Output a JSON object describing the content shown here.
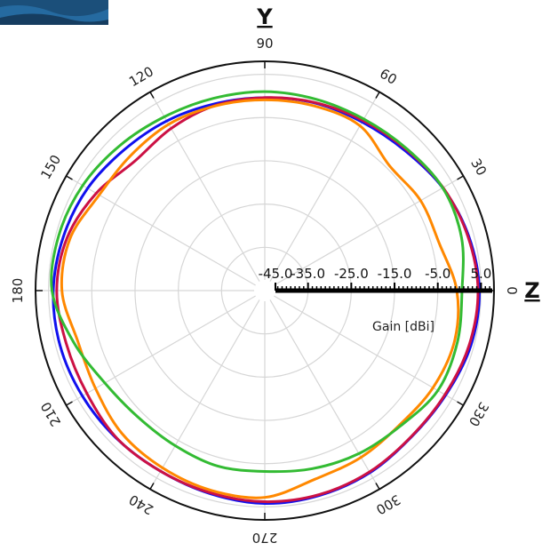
{
  "chart_data": {
    "type": "polar-line",
    "rlabel": "Gain [dBi]",
    "rlim": [
      -45,
      8
    ],
    "rticks": [
      -45.0,
      -35.0,
      -25.0,
      -15.0,
      -5.0,
      5.0
    ],
    "rtick_labels": [
      "-45.0",
      "-35.0",
      "-25.0",
      "-15.0",
      "-5.0",
      "5.0"
    ],
    "angle_ticks": [
      0,
      30,
      60,
      90,
      120,
      150,
      180,
      210,
      240,
      270,
      300,
      330
    ],
    "angle_labels": [
      "0",
      "30",
      "60",
      "90",
      "120",
      "150",
      "180",
      "210",
      "240",
      "270",
      "300",
      "330"
    ],
    "axis_letters": {
      "top": "Y",
      "right": "Z"
    },
    "grid": true,
    "series": [
      {
        "color": "#1010ee",
        "angles": [
          0,
          15,
          30,
          45,
          60,
          75,
          90,
          105,
          120,
          135,
          150,
          165,
          180,
          195,
          210,
          225,
          240,
          255,
          270,
          285,
          300,
          315,
          330,
          345
        ],
        "values": [
          4.6,
          3.8,
          2.5,
          0.8,
          0.0,
          -0.1,
          -0.4,
          -0.3,
          0.3,
          1.0,
          2.3,
          3.2,
          3.9,
          4.0,
          3.7,
          3.4,
          3.2,
          3.6,
          4.2,
          4.0,
          3.6,
          2.9,
          3.3,
          4.3
        ]
      },
      {
        "color": "#cc1144",
        "angles": [
          0,
          15,
          30,
          45,
          60,
          75,
          90,
          105,
          120,
          135,
          150,
          165,
          180,
          195,
          210,
          225,
          240,
          255,
          270,
          285,
          300,
          315,
          330,
          345
        ],
        "values": [
          4.3,
          3.6,
          2.6,
          1.2,
          0.4,
          0.0,
          -0.4,
          -0.7,
          -1.7,
          -2.6,
          0.0,
          2.3,
          3.1,
          2.5,
          2.5,
          3.3,
          3.2,
          3.4,
          3.8,
          3.8,
          3.4,
          2.8,
          3.1,
          3.9
        ]
      },
      {
        "color": "#ff8800",
        "angles": [
          0,
          15,
          30,
          45,
          60,
          75,
          90,
          105,
          120,
          135,
          150,
          165,
          180,
          195,
          210,
          225,
          240,
          255,
          270,
          285,
          300,
          315,
          330,
          345
        ],
        "values": [
          -0.6,
          -3.2,
          -3.4,
          -4.2,
          -1.0,
          -0.8,
          -0.9,
          -0.8,
          -0.6,
          -1.0,
          -0.8,
          1.6,
          1.9,
          -0.2,
          0.2,
          1.7,
          2.3,
          2.8,
          2.8,
          0.1,
          -0.5,
          -1.0,
          -0.1,
          0.4
        ]
      },
      {
        "color": "#33bb33",
        "angles": [
          0,
          15,
          30,
          45,
          60,
          75,
          90,
          105,
          120,
          135,
          150,
          165,
          180,
          195,
          210,
          225,
          240,
          255,
          270,
          285,
          300,
          315,
          330,
          345
        ],
        "values": [
          0.6,
          2.1,
          2.5,
          1.4,
          0.8,
          0.8,
          1.0,
          1.0,
          1.4,
          2.4,
          3.6,
          4.3,
          4.2,
          0.8,
          -2.3,
          -3.6,
          -3.6,
          -3.0,
          -3.2,
          -2.4,
          -1.5,
          -0.7,
          1.2,
          1.1
        ]
      }
    ]
  }
}
